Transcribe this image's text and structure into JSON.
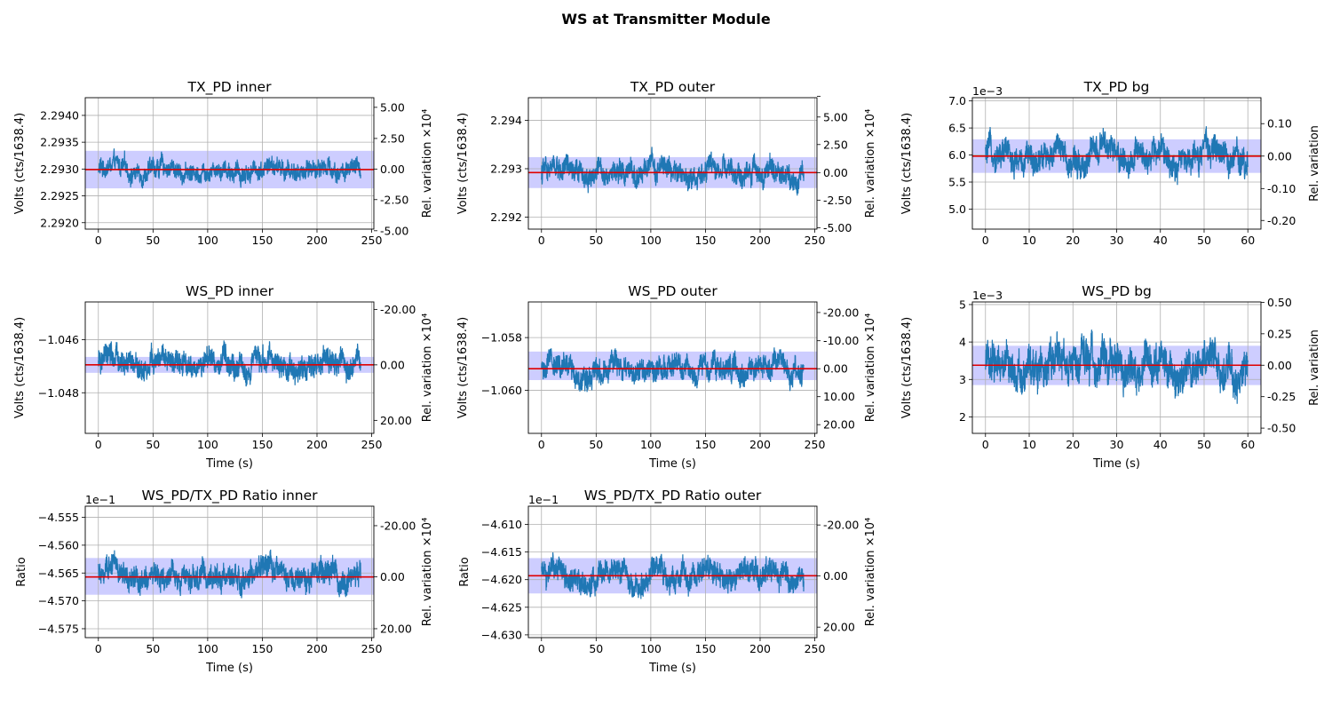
{
  "figure": {
    "title": "WS at Transmitter Module"
  },
  "colors": {
    "signal": "#1f77b4",
    "mean": "#e00000",
    "band": "#c8c8ff",
    "grid": "#b0b0b0"
  },
  "chart_data": [
    {
      "type": "line",
      "title": "TX_PD inner",
      "xlabel": "",
      "ylabel": "Volts (cts/1638.4)",
      "y2label": "Rel. variation ×10⁴",
      "xlim": [
        -12,
        252
      ],
      "ylim": [
        2.29188,
        2.29433
      ],
      "xticks": [
        "0",
        "50",
        "100",
        "150",
        "200",
        "250"
      ],
      "yticks": [
        "2.2920",
        "2.2925",
        "2.2930",
        "2.2935",
        "2.2940"
      ],
      "ytick_values": [
        2.292,
        2.2925,
        2.293,
        2.2935,
        2.294
      ],
      "y2ticks": [
        "-5.00",
        "-2.50",
        "0.00",
        "2.50",
        "5.00"
      ],
      "y2tick_values": [
        2.29185,
        2.29243,
        2.293,
        2.29357,
        2.29415
      ],
      "offset_text": "",
      "series": {
        "x_start": 0,
        "x_end": 240,
        "mean": 2.29299,
        "noise_min": 2.2919,
        "noise_max": 2.2941,
        "noise_spread": 0.00017
      },
      "std_band": [
        2.29264,
        2.29334
      ],
      "grid": true
    },
    {
      "type": "line",
      "title": "TX_PD outer",
      "xlabel": "",
      "ylabel": "Volts (cts/1638.4)",
      "y2label": "Rel. variation ×10⁴",
      "xlim": [
        -12,
        252
      ],
      "ylim": [
        2.29175,
        2.29447
      ],
      "xticks": [
        "0",
        "50",
        "100",
        "150",
        "200",
        "250"
      ],
      "yticks": [
        "2.292",
        "2.293",
        "2.294"
      ],
      "ytick_values": [
        2.292,
        2.293,
        2.294
      ],
      "y2ticks": [
        "-5.00",
        "-2.50",
        "0.00",
        "2.50",
        "5.00",
        " "
      ],
      "y2tick_values": [
        2.29178,
        2.29235,
        2.29292,
        2.2935,
        2.29407,
        2.2945
      ],
      "offset_text": "",
      "series": {
        "x_start": 0,
        "x_end": 240,
        "mean": 2.29292,
        "noise_min": 2.2918,
        "noise_max": 2.2943,
        "noise_spread": 0.00023
      },
      "std_band": [
        2.2926,
        2.29324
      ],
      "grid": true
    },
    {
      "type": "line",
      "title": "TX_PD bg",
      "xlabel": "",
      "ylabel": "Volts (cts/1638.4)",
      "y2label": "Rel. variation",
      "xlim": [
        -3,
        63
      ],
      "ylim": [
        4.63,
        7.06
      ],
      "xticks": [
        "0",
        "10",
        "20",
        "30",
        "40",
        "50",
        "60"
      ],
      "yticks": [
        "5.0",
        "5.5",
        "6.0",
        "6.5",
        "7.0"
      ],
      "ytick_values": [
        5.0,
        5.5,
        6.0,
        6.5,
        7.0
      ],
      "y2ticks": [
        "-0.20",
        "-0.10",
        "0.00",
        "0.10"
      ],
      "y2tick_values": [
        4.79,
        5.38,
        5.98,
        6.58
      ],
      "offset_text": "1e−3",
      "series": {
        "x_start": 0,
        "x_end": 60,
        "mean": 5.98,
        "noise_min": 4.75,
        "noise_max": 7.0,
        "noise_spread": 0.25
      },
      "std_band": [
        5.67,
        6.29
      ],
      "grid": true
    },
    {
      "type": "line",
      "title": "WS_PD inner",
      "xlabel": "Time (s)",
      "ylabel": "Volts (cts/1638.4)",
      "y2label": "Rel. variation ×10⁴",
      "xlim": [
        -12,
        252
      ],
      "ylim": [
        -1.04953,
        -1.04458
      ],
      "xticks": [
        "0",
        "50",
        "100",
        "150",
        "200",
        "250"
      ],
      "yticks": [
        "−1.046",
        "−1.048"
      ],
      "ytick_values": [
        -1.046,
        -1.048
      ],
      "y2ticks": [
        "-20.00",
        "0.00",
        "20.00"
      ],
      "y2tick_values": [
        -1.04486,
        -1.04695,
        -1.04904
      ],
      "offset_text": "",
      "series": {
        "x_start": 0,
        "x_end": 240,
        "mean": -1.04695,
        "noise_min": -1.0493,
        "noise_max": -1.0447,
        "noise_spread": 0.00045
      },
      "std_band": [
        -1.04725,
        -1.04665
      ],
      "grid": true
    },
    {
      "type": "line",
      "title": "WS_PD outer",
      "xlabel": "Time (s)",
      "ylabel": "Volts (cts/1638.4)",
      "y2label": "Rel. variation ×10⁴",
      "xlim": [
        -12,
        252
      ],
      "ylim": [
        -1.06163,
        -1.05665
      ],
      "xticks": [
        "0",
        "50",
        "100",
        "150",
        "200",
        "250"
      ],
      "yticks": [
        "−1.058",
        "−1.060"
      ],
      "ytick_values": [
        -1.058,
        -1.06
      ],
      "y2ticks": [
        "-20.00",
        "-10.00",
        "0.00",
        "10.00",
        "20.00"
      ],
      "y2tick_values": [
        -1.05705,
        -1.05812,
        -1.05918,
        -1.06024,
        -1.0613
      ],
      "offset_text": "",
      "series": {
        "x_start": 0,
        "x_end": 240,
        "mean": -1.05918,
        "noise_min": -1.0614,
        "noise_max": -1.0568,
        "noise_spread": 0.00045
      },
      "std_band": [
        -1.05961,
        -1.05853
      ],
      "grid": true
    },
    {
      "type": "line",
      "title": "WS_PD bg",
      "xlabel": "Time (s)",
      "ylabel": "Volts (cts/1638.4)",
      "y2label": "Rel. variation",
      "xlim": [
        -3,
        63
      ],
      "ylim": [
        1.56,
        5.07
      ],
      "xticks": [
        "0",
        "10",
        "20",
        "30",
        "40",
        "50",
        "60"
      ],
      "yticks": [
        "2",
        "3",
        "4",
        "5"
      ],
      "ytick_values": [
        2,
        3,
        4,
        5
      ],
      "y2ticks": [
        "-0.50",
        "-0.25",
        "0.00",
        "0.25",
        "0.50"
      ],
      "y2tick_values": [
        1.7,
        2.54,
        3.38,
        4.22,
        5.06
      ],
      "offset_text": "1e−3",
      "series": {
        "x_start": 0,
        "x_end": 60,
        "mean": 3.38,
        "noise_min": 1.72,
        "noise_max": 4.95,
        "noise_spread": 0.5
      },
      "std_band": [
        2.85,
        3.9
      ],
      "grid": true
    },
    {
      "type": "line",
      "title": "WS_PD/TX_PD Ratio inner",
      "xlabel": "Time (s)",
      "ylabel": "Ratio",
      "y2label": "Rel. variation ×10⁴",
      "xlim": [
        -12,
        252
      ],
      "ylim": [
        -4.5766,
        -4.553
      ],
      "xticks": [
        "0",
        "50",
        "100",
        "150",
        "200",
        "250"
      ],
      "yticks": [
        "−4.555",
        "−4.560",
        "−4.565",
        "−4.570",
        "−4.575"
      ],
      "ytick_values": [
        -4.555,
        -4.56,
        -4.565,
        -4.57,
        -4.575
      ],
      "y2ticks": [
        "-20.00",
        "0.00",
        "20.00"
      ],
      "y2tick_values": [
        -4.5565,
        -4.5657,
        -4.575
      ],
      "offset_text": "1e−1",
      "series": {
        "x_start": 0,
        "x_end": 240,
        "mean": -4.5657,
        "noise_min": -4.5755,
        "noise_max": -4.554,
        "noise_spread": 0.0022
      },
      "std_band": [
        -4.5689,
        -4.5623
      ],
      "grid": true
    },
    {
      "type": "line",
      "title": "WS_PD/TX_PD Ratio outer",
      "xlabel": "Time (s)",
      "ylabel": "Ratio",
      "y2label": "Rel. variation ×10⁴",
      "xlim": [
        -12,
        252
      ],
      "ylim": [
        -4.6305,
        -4.6067
      ],
      "xticks": [
        "0",
        "50",
        "100",
        "150",
        "200",
        "250"
      ],
      "yticks": [
        "−4.610",
        "−4.615",
        "−4.620",
        "−4.625",
        "−4.630"
      ],
      "ytick_values": [
        -4.61,
        -4.615,
        -4.62,
        -4.625,
        -4.63
      ],
      "y2ticks": [
        "-20.00",
        "0.00",
        "20.00"
      ],
      "y2tick_values": [
        -4.6101,
        -4.6193,
        -4.6286
      ],
      "offset_text": "1e−1",
      "series": {
        "x_start": 0,
        "x_end": 240,
        "mean": -4.6193,
        "noise_min": -4.6292,
        "noise_max": -4.6083,
        "noise_spread": 0.0022
      },
      "std_band": [
        -4.6225,
        -4.6161
      ],
      "grid": true
    }
  ]
}
